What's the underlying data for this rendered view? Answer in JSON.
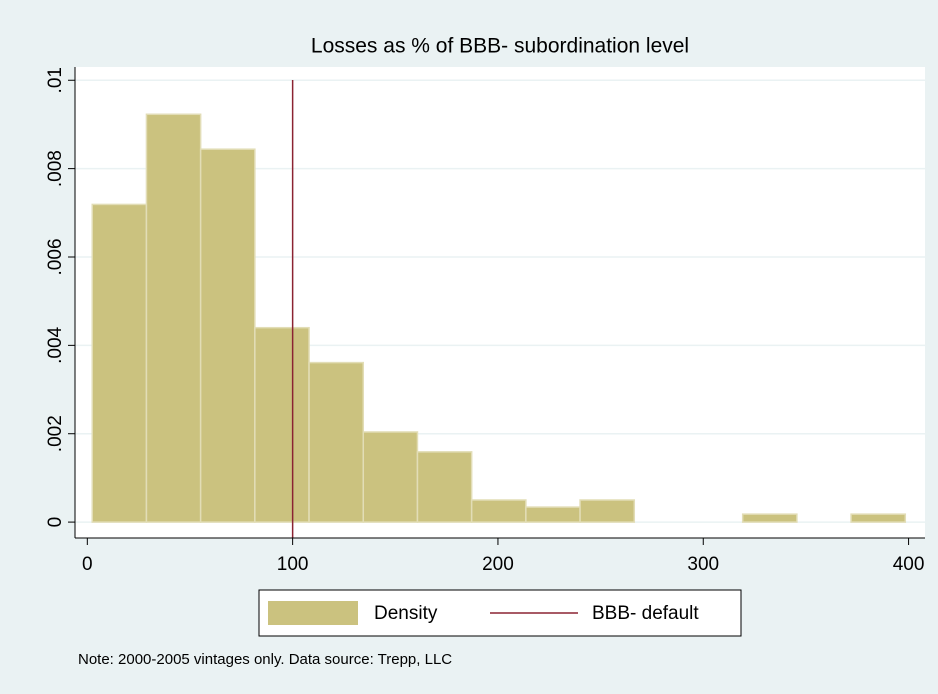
{
  "chart_data": {
    "type": "histogram",
    "title": "Losses as % of BBB- subordination level",
    "bins": [
      2.4,
      28.8,
      55.2,
      81.6,
      108,
      134.4,
      160.8,
      187.2,
      213.6,
      240,
      266.4,
      292.8,
      319.2,
      345.6,
      372,
      398.4
    ],
    "values": [
      0.00719,
      0.00923,
      0.00844,
      0.0044,
      0.00361,
      0.00204,
      0.00159,
      0.0005,
      0.00034,
      0.0005,
      0,
      0,
      0.00018,
      0,
      0.00018
    ],
    "series_name": "Density",
    "color": "#cbc27f",
    "reference_line": {
      "x": 100,
      "name": "BBB- default",
      "color": "#8b2332"
    },
    "xlim": [
      -6,
      408
    ],
    "ylim": [
      -0.00036,
      0.0103
    ],
    "xticks": [
      0,
      100,
      200,
      300,
      400
    ],
    "yticks": [
      0,
      {
        "value": 0.002,
        "label": ".002"
      },
      {
        "value": 0.004,
        "label": ".004"
      },
      {
        "value": 0.006,
        "label": ".006"
      },
      {
        "value": 0.008,
        "label": ".008"
      },
      {
        "value": 0.01,
        "label": ".01"
      }
    ],
    "grid": true,
    "legend_position": "bottom",
    "note": "Note: 2000-2005 vintages only. Data source: Trepp, LLC"
  }
}
